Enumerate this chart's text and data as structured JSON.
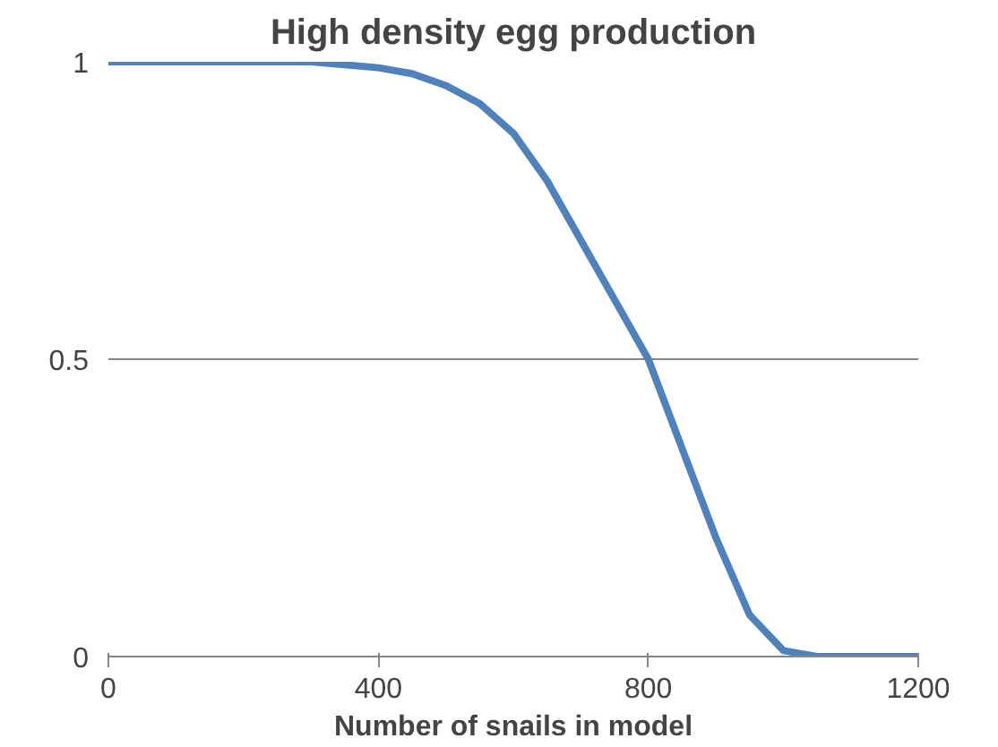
{
  "chart_data": {
    "type": "line",
    "title": "High density egg production",
    "xlabel": "Number of snails in model",
    "x": [
      0,
      100,
      200,
      300,
      400,
      450,
      500,
      550,
      600,
      650,
      700,
      750,
      800,
      850,
      900,
      950,
      1000,
      1050,
      1100,
      1200
    ],
    "series": [
      {
        "color": "#4f81bd",
        "values": [
          1,
          1,
          1,
          1,
          0.99,
          0.98,
          0.96,
          0.93,
          0.88,
          0.8,
          0.7,
          0.6,
          0.5,
          0.35,
          0.2,
          0.07,
          0.01,
          0,
          0,
          0
        ]
      }
    ],
    "xlim": [
      0,
      1200
    ],
    "xticks": [
      0,
      400,
      800,
      1200
    ],
    "ylim": [
      0,
      1
    ],
    "yticks": [
      0,
      0.5,
      1
    ],
    "grid": "y",
    "marker": "none",
    "line_style": "solid"
  }
}
